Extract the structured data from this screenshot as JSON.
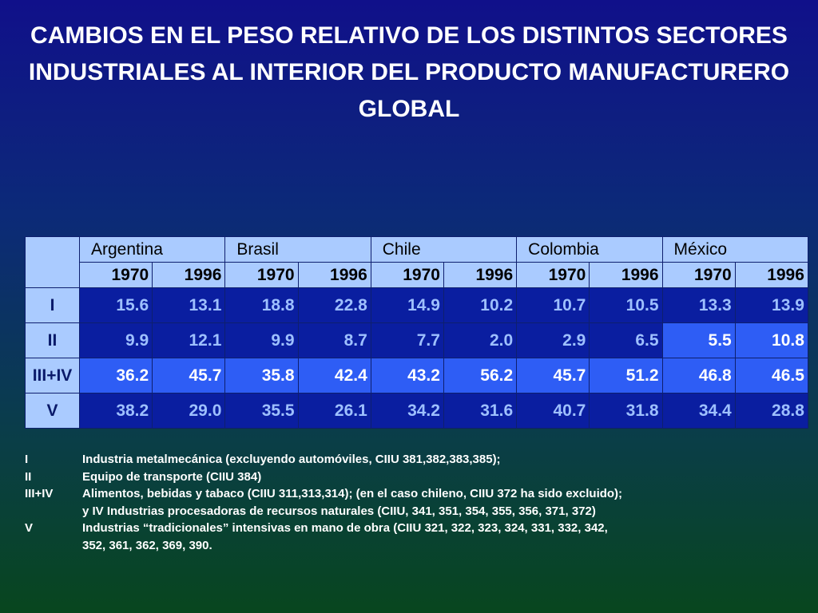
{
  "title": "CAMBIOS EN EL PESO RELATIVO DE LOS DISTINTOS SECTORES INDUSTRIALES AL INTERIOR DEL PRODUCTO MANUFACTURERO GLOBAL",
  "table": {
    "countries": [
      "Argentina",
      "Brasil",
      "Chile",
      "Colombia",
      "México"
    ],
    "years": [
      "1970",
      "1996",
      "1970",
      "1996",
      "1970",
      "1996",
      "1970",
      "1996",
      "1970",
      "1996"
    ],
    "rows": [
      {
        "label": "I",
        "values": [
          "15.6",
          "13.1",
          "18.8",
          "22.8",
          "14.9",
          "10.2",
          "10.7",
          "10.5",
          "13.3",
          "13.9"
        ]
      },
      {
        "label": "II",
        "values": [
          "9.9",
          "12.1",
          "9.9",
          "8.7",
          "7.7",
          "2.0",
          "2.9",
          "6.5",
          "5.5",
          "10.8"
        ]
      },
      {
        "label": "III+IV",
        "values": [
          "36.2",
          "45.7",
          "35.8",
          "42.4",
          "43.2",
          "56.2",
          "45.7",
          "51.2",
          "46.8",
          "46.5"
        ]
      },
      {
        "label": "V",
        "values": [
          "38.2",
          "29.0",
          "35.5",
          "26.1",
          "34.2",
          "31.6",
          "40.7",
          "31.8",
          "34.4",
          "28.8"
        ]
      }
    ]
  },
  "footnotes": [
    {
      "code": "I",
      "text": "Industria metalmecánica (excluyendo automóviles, CIIU 381,382,383,385);"
    },
    {
      "code": "II",
      "text": "Equipo de transporte (CIIU 384)"
    },
    {
      "code": "III+IV",
      "text": "Alimentos, bebidas y tabaco (CIIU 311,313,314); (en el caso chileno, CIIU 372 ha sido excluido);"
    },
    {
      "code": "",
      "text": "y IV Industrias procesadoras de recursos naturales (CIIU, 341, 351, 354, 355, 356, 371, 372)"
    },
    {
      "code": "V",
      "text": "Industrias “tradicionales” intensivas en mano de obra (CIIU 321, 322, 323, 324, 331, 332, 342,"
    },
    {
      "code": "",
      "text": "352, 361, 362, 369, 390."
    }
  ],
  "colors": {
    "header_bg": "#aacbff",
    "cell_dim_bg": "#0a1ea0",
    "cell_dim_text": "#9ec0ff",
    "cell_highlight_bg": "#2e5df5",
    "background_top": "#10108a",
    "background_bottom": "#08461e"
  }
}
